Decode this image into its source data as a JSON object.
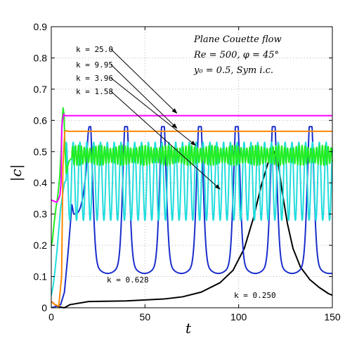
{
  "chart_data": {
    "type": "line",
    "xlabel": "t",
    "ylabel": "|c|",
    "xlim": [
      0,
      150
    ],
    "ylim": [
      0,
      0.9
    ],
    "xticks": [
      "0",
      "50",
      "100",
      "150"
    ],
    "yticks": [
      "0",
      "0.1",
      "0.2",
      "0.3",
      "0.4",
      "0.5",
      "0.6",
      "0.7",
      "0.8",
      "0.9"
    ],
    "grid": true,
    "annotation_lines": [
      "Plane Couette flow",
      "Re = 500,  φ = 45°",
      "y₀ = 0.5,  Sym i.c."
    ],
    "series": [
      {
        "name": "k = 25.0",
        "color": "#ff00ff",
        "kind": "points",
        "points": [
          [
            0,
            0.345
          ],
          [
            2,
            0.34
          ],
          [
            3,
            0.338
          ],
          [
            4,
            0.35
          ],
          [
            4.6,
            0.36
          ],
          [
            5.2,
            0.4
          ],
          [
            5.6,
            0.58
          ],
          [
            6,
            0.6
          ],
          [
            6.6,
            0.62
          ],
          [
            7.2,
            0.615
          ],
          [
            10,
            0.615
          ],
          [
            50,
            0.615
          ],
          [
            100,
            0.615
          ],
          [
            150,
            0.615
          ]
        ]
      },
      {
        "name": "k = 9.95",
        "color": "#ff8800",
        "kind": "points",
        "points": [
          [
            0,
            0.02
          ],
          [
            2,
            0.01
          ],
          [
            4,
            0.005
          ],
          [
            5.5,
            0.1
          ],
          [
            6.2,
            0.45
          ],
          [
            6.8,
            0.52
          ],
          [
            7.2,
            0.565
          ],
          [
            8,
            0.567
          ],
          [
            9,
            0.565
          ],
          [
            50,
            0.565
          ],
          [
            100,
            0.565
          ],
          [
            150,
            0.565
          ]
        ]
      },
      {
        "name": "k = 3.96",
        "color": "#22ee22",
        "kind": "green",
        "points": [
          [
            0,
            0.2
          ],
          [
            0.5,
            0.21
          ],
          [
            1.5,
            0.27
          ],
          [
            2.5,
            0.32
          ],
          [
            3.5,
            0.36
          ],
          [
            4.5,
            0.42
          ],
          [
            5.2,
            0.5
          ],
          [
            5.8,
            0.6
          ],
          [
            6.3,
            0.64
          ],
          [
            6.8,
            0.62
          ],
          [
            7.3,
            0.51
          ],
          [
            8,
            0.43
          ],
          [
            8.6,
            0.45
          ],
          [
            9.5,
            0.47
          ],
          [
            11,
            0.48
          ]
        ],
        "osc_mean": 0.488,
        "osc_amp": 0.032,
        "osc_period": 1.55,
        "osc_until": 150
      },
      {
        "name": "k = 1.58",
        "color": "#22dddd",
        "kind": "cyan",
        "points": [
          [
            0,
            0.04
          ],
          [
            1,
            0.07
          ],
          [
            2,
            0.12
          ],
          [
            3,
            0.18
          ],
          [
            4,
            0.25
          ],
          [
            5,
            0.32
          ],
          [
            6,
            0.36
          ],
          [
            7,
            0.4
          ],
          [
            8,
            0.41
          ]
        ],
        "osc_center": 0.405,
        "osc_amp": 0.125,
        "osc_period": 3.65,
        "osc_from": 8
      },
      {
        "name": "k = 0.628",
        "color": "#1a2ecc",
        "kind": "blue",
        "points": [
          [
            0,
            0.0
          ],
          [
            3,
            0.005
          ],
          [
            5,
            0.01
          ],
          [
            7,
            0.05
          ],
          [
            9,
            0.18
          ],
          [
            11,
            0.33
          ],
          [
            12,
            0.3
          ]
        ],
        "peaks": [
          20.3,
          39.9,
          59.6,
          79.3,
          99.0,
          118.7,
          138.4
        ],
        "peak_value": 0.58,
        "trough_value": 0.11,
        "end_value": 0.11
      },
      {
        "name": "k = 0.250",
        "color": "#000000",
        "kind": "points",
        "points": [
          [
            0,
            0.02
          ],
          [
            3,
            0.005
          ],
          [
            5,
            0.002
          ],
          [
            7,
            0.0
          ],
          [
            10,
            0.01
          ],
          [
            20,
            0.02
          ],
          [
            40,
            0.022
          ],
          [
            60,
            0.028
          ],
          [
            70,
            0.035
          ],
          [
            80,
            0.05
          ],
          [
            90,
            0.08
          ],
          [
            97,
            0.12
          ],
          [
            103,
            0.19
          ],
          [
            108,
            0.29
          ],
          [
            112,
            0.39
          ],
          [
            115,
            0.45
          ],
          [
            117,
            0.49
          ],
          [
            119,
            0.5
          ],
          [
            121,
            0.47
          ],
          [
            123,
            0.38
          ],
          [
            126,
            0.27
          ],
          [
            129,
            0.19
          ],
          [
            133,
            0.13
          ],
          [
            138,
            0.09
          ],
          [
            143,
            0.065
          ],
          [
            148,
            0.045
          ],
          [
            150,
            0.04
          ]
        ]
      }
    ],
    "labels": [
      {
        "text": "k = 25.0",
        "target": "k = 25.0"
      },
      {
        "text": "k = 9.95",
        "target": "k = 9.95"
      },
      {
        "text": "k = 3.96",
        "target": "k = 3.96"
      },
      {
        "text": "k = 1.58",
        "target": "k = 1.58"
      },
      {
        "text": "k = 0.628",
        "target": "k = 0.628"
      },
      {
        "text": "k = 0.250",
        "target": "k = 0.250"
      }
    ]
  }
}
